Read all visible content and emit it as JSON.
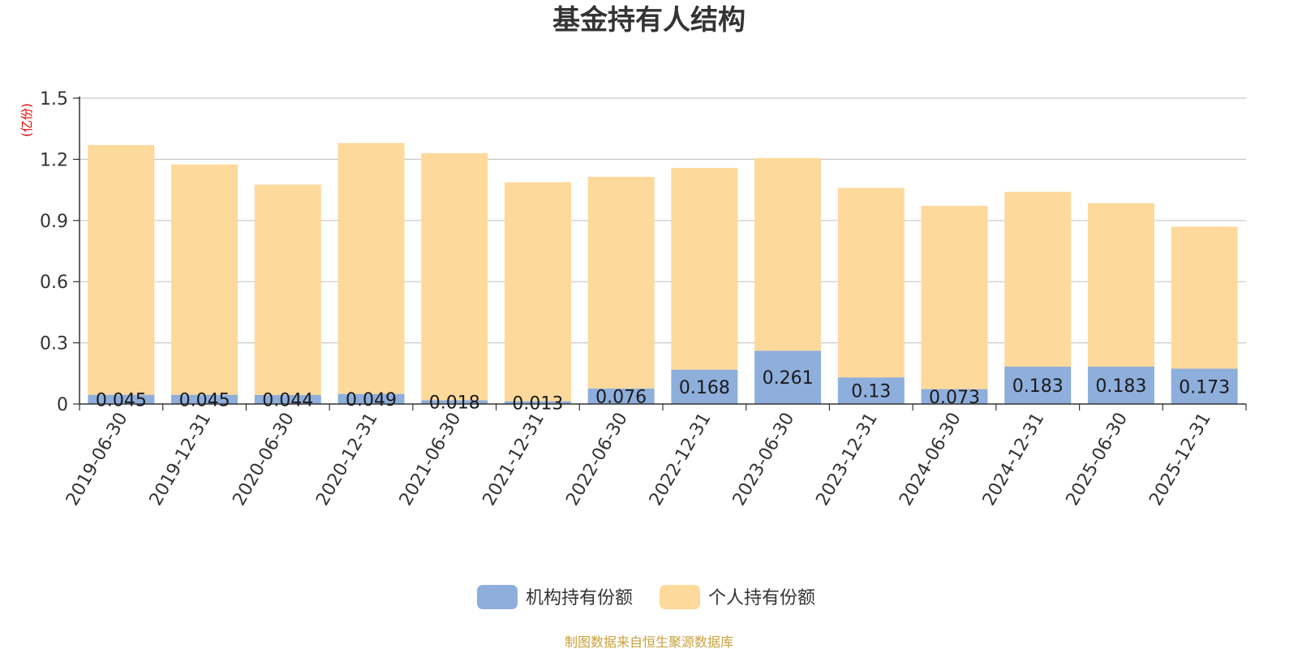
{
  "chart_data": {
    "type": "bar",
    "stacked": true,
    "title": "基金持有人结构",
    "unit_label": "(亿份)",
    "categories": [
      "2019-06-30",
      "2019-12-31",
      "2020-06-30",
      "2020-12-31",
      "2021-06-30",
      "2021-12-31",
      "2022-06-30",
      "2022-12-31",
      "2023-06-30",
      "2023-12-31",
      "2024-06-30",
      "2024-12-31",
      "2025-06-30",
      "2025-12-31"
    ],
    "series": [
      {
        "name": "机构持有份额",
        "color": "#8eaedc",
        "values": [
          0.045,
          0.045,
          0.044,
          0.049,
          0.018,
          0.013,
          0.076,
          0.168,
          0.261,
          0.13,
          0.073,
          0.183,
          0.183,
          0.173
        ],
        "labels": [
          "0.045",
          "0.045",
          "0.044",
          "0.049",
          "0.018",
          "0.013",
          "0.076",
          "0.168",
          "0.261",
          "0.13",
          "0.073",
          "0.183",
          "0.183",
          "0.173"
        ]
      },
      {
        "name": "个人持有份额",
        "color": "#fdd99b",
        "values": [
          1.225,
          1.13,
          1.032,
          1.231,
          1.212,
          1.075,
          1.038,
          0.99,
          0.945,
          0.93,
          0.899,
          0.857,
          0.802,
          0.697
        ]
      }
    ],
    "ylim": [
      0,
      1.5
    ],
    "yticks": [
      "0",
      "0.3",
      "0.6",
      "0.9",
      "1.2",
      "1.5"
    ],
    "ytick_values": [
      0,
      0.3,
      0.6,
      0.9,
      1.2,
      1.5
    ],
    "grid": true,
    "legend_position": "bottom-center"
  },
  "source_note": "制图数据来自恒生聚源数据库"
}
